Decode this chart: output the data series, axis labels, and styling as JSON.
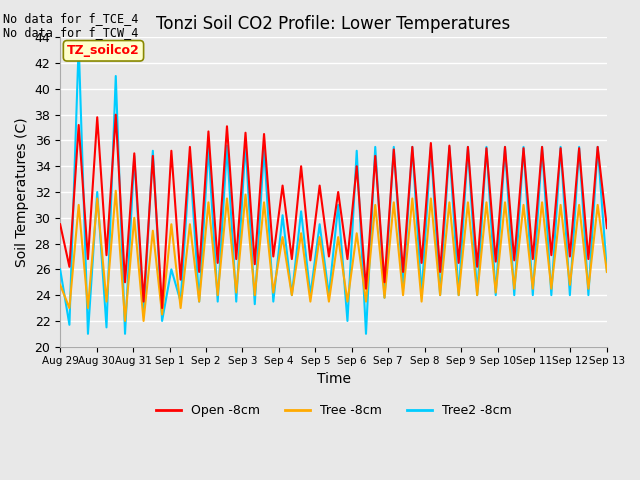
{
  "title": "Tonzi Soil CO2 Profile: Lower Temperatures",
  "xlabel": "Time",
  "ylabel": "Soil Temperatures (C)",
  "annotations": [
    "No data for f_TCE_4",
    "No data for f_TCW_4"
  ],
  "annotation_box_label": "TZ_soilco2",
  "ylim": [
    20,
    44
  ],
  "yticks": [
    20,
    22,
    24,
    26,
    28,
    30,
    32,
    34,
    36,
    38,
    40,
    42,
    44
  ],
  "xtick_labels": [
    "Aug 29",
    "Aug 30",
    "Aug 31",
    "Sep 1",
    "Sep 2",
    "Sep 3",
    "Sep 4",
    "Sep 5",
    "Sep 6",
    "Sep 7",
    "Sep 8",
    "Sep 9",
    "Sep 10",
    "Sep 11",
    "Sep 12",
    "Sep 13"
  ],
  "legend_labels": [
    "Open -8cm",
    "Tree -8cm",
    "Tree2 -8cm"
  ],
  "legend_colors": [
    "#ff0000",
    "#ffaa00",
    "#00ccff"
  ],
  "bg_color": "#e8e8e8",
  "plot_bg_color": "#e8e8e8",
  "grid_color": "#ffffff",
  "open_8cm": [
    29.5,
    26.2,
    37.2,
    26.8,
    37.8,
    27.1,
    38.0,
    25.0,
    35.0,
    23.5,
    34.8,
    23.0,
    35.2,
    25.2,
    35.5,
    25.8,
    36.7,
    26.5,
    37.1,
    26.8,
    36.6,
    26.4,
    36.5,
    27.0,
    32.5,
    26.8,
    34.0,
    26.7,
    32.5,
    27.0,
    32.0,
    26.8,
    34.0,
    24.5,
    34.8,
    25.0,
    35.3,
    25.8,
    35.5,
    26.5,
    35.8,
    25.8,
    35.6,
    26.5,
    35.5,
    26.2,
    35.4,
    26.6,
    35.5,
    26.7,
    35.4,
    26.8,
    35.5,
    27.1,
    35.4,
    27.0,
    35.4,
    26.8,
    35.5,
    29.2
  ],
  "tree_8cm": [
    24.8,
    23.0,
    31.0,
    23.0,
    31.5,
    23.5,
    32.1,
    22.0,
    30.0,
    22.0,
    29.0,
    22.5,
    29.5,
    23.0,
    29.5,
    23.5,
    31.2,
    24.0,
    31.5,
    24.2,
    31.8,
    24.0,
    31.2,
    24.2,
    28.5,
    24.0,
    28.8,
    23.5,
    28.5,
    23.5,
    28.5,
    23.5,
    28.8,
    23.5,
    31.0,
    23.8,
    31.2,
    24.0,
    31.5,
    23.5,
    31.5,
    24.0,
    31.2,
    24.0,
    31.2,
    24.0,
    31.2,
    24.2,
    31.2,
    24.5,
    31.0,
    24.5,
    31.2,
    24.5,
    31.0,
    24.8,
    31.0,
    24.5,
    31.0,
    25.8
  ],
  "tree2_8cm": [
    26.0,
    21.7,
    43.5,
    21.0,
    32.0,
    21.5,
    41.0,
    21.0,
    34.8,
    22.5,
    35.2,
    22.0,
    26.0,
    23.5,
    34.5,
    23.5,
    35.5,
    23.5,
    35.6,
    23.5,
    35.8,
    23.3,
    35.5,
    23.5,
    30.2,
    24.0,
    30.5,
    24.0,
    29.5,
    24.0,
    31.0,
    22.0,
    35.2,
    21.0,
    35.5,
    23.8,
    35.5,
    24.5,
    35.5,
    24.0,
    35.5,
    24.0,
    35.5,
    24.0,
    35.5,
    24.0,
    35.5,
    24.0,
    35.5,
    24.0,
    35.5,
    24.0,
    35.5,
    24.0,
    35.5,
    24.0,
    35.5,
    24.0,
    35.5,
    25.8
  ]
}
